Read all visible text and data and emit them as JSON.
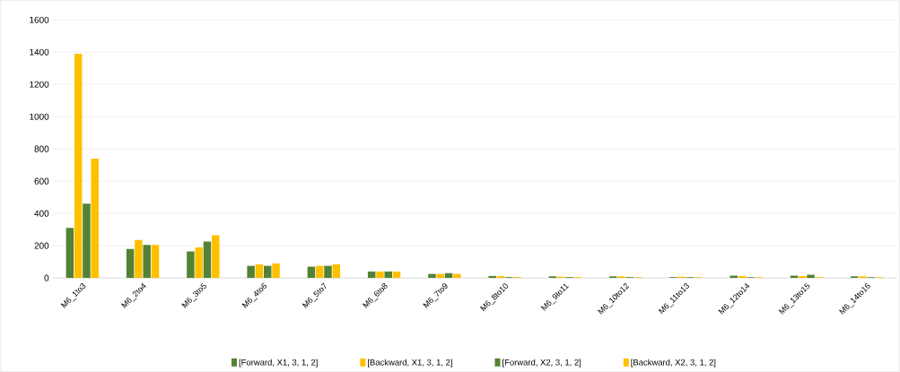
{
  "chart_data": {
    "type": "bar",
    "categories": [
      "M6_1to3",
      "M6_2to4",
      "M6_3to5",
      "M6_4to6",
      "M6_5to7",
      "M6_6to8",
      "M6_7to9",
      "M6_8to10",
      "M6_9to11",
      "M6_10to12",
      "M6_11to13",
      "M6_12to14",
      "M6_13to15",
      "M6_14to16"
    ],
    "series": [
      {
        "name": "[Forward, X1, 3, 1, 2]",
        "color": "#548235",
        "values": [
          310,
          180,
          165,
          75,
          70,
          40,
          25,
          12,
          10,
          10,
          5,
          15,
          15,
          10
        ]
      },
      {
        "name": "[Backward, X1, 3, 1, 2]",
        "color": "#ffc000",
        "values": [
          1390,
          235,
          190,
          85,
          75,
          40,
          25,
          12,
          8,
          10,
          8,
          12,
          12,
          10
        ]
      },
      {
        "name": "[Forward, X2, 3, 1, 2]",
        "color": "#548235",
        "values": [
          460,
          205,
          225,
          75,
          75,
          40,
          30,
          5,
          5,
          5,
          5,
          5,
          20,
          5
        ]
      },
      {
        "name": "[Backward, X2, 3, 1, 2]",
        "color": "#ffc000",
        "values": [
          740,
          205,
          265,
          90,
          85,
          40,
          25,
          5,
          5,
          5,
          5,
          5,
          5,
          5
        ]
      }
    ],
    "ylim": [
      0,
      1600
    ],
    "yticks": [
      0,
      200,
      400,
      600,
      800,
      1000,
      1200,
      1400,
      1600
    ],
    "grid": "y",
    "legend": "bottom"
  }
}
